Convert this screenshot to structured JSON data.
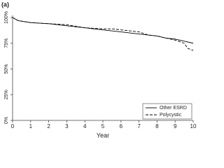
{
  "chart_data": {
    "type": "line",
    "title": "(a)",
    "xlabel": "Year",
    "xlim": [
      0,
      10
    ],
    "xticks": [
      0,
      1,
      2,
      3,
      4,
      5,
      6,
      7,
      8,
      9,
      10
    ],
    "ylim": [
      0,
      100
    ],
    "yticks": [
      {
        "value": 0,
        "label": "0%"
      },
      {
        "value": 25,
        "label": "25%"
      },
      {
        "value": 50,
        "label": "50%"
      },
      {
        "value": 75,
        "label": "75%"
      },
      {
        "value": 100,
        "label": "100%"
      }
    ],
    "grid": false,
    "legend": "lower right",
    "series": [
      {
        "name": "Other ESRD",
        "color": "#000000",
        "dash": "none",
        "x": [
          0,
          0.3,
          1,
          2,
          3,
          4,
          5,
          6,
          7,
          8,
          8.5,
          9,
          9.5,
          10
        ],
        "values": [
          100,
          97,
          95,
          94,
          92,
          90,
          88,
          86,
          84,
          82,
          80,
          79,
          77,
          75
        ]
      },
      {
        "name": "Polycystic",
        "color": "#000000",
        "dash": "4 2",
        "x": [
          0,
          0.3,
          1,
          2,
          3,
          4,
          5,
          5.5,
          6,
          7,
          7.5,
          8,
          8.5,
          9,
          9.5,
          9.7,
          10
        ],
        "values": [
          100,
          97,
          95,
          94,
          93,
          90,
          89,
          89,
          88,
          86,
          83,
          82,
          80,
          78,
          75,
          70,
          68
        ]
      }
    ]
  }
}
